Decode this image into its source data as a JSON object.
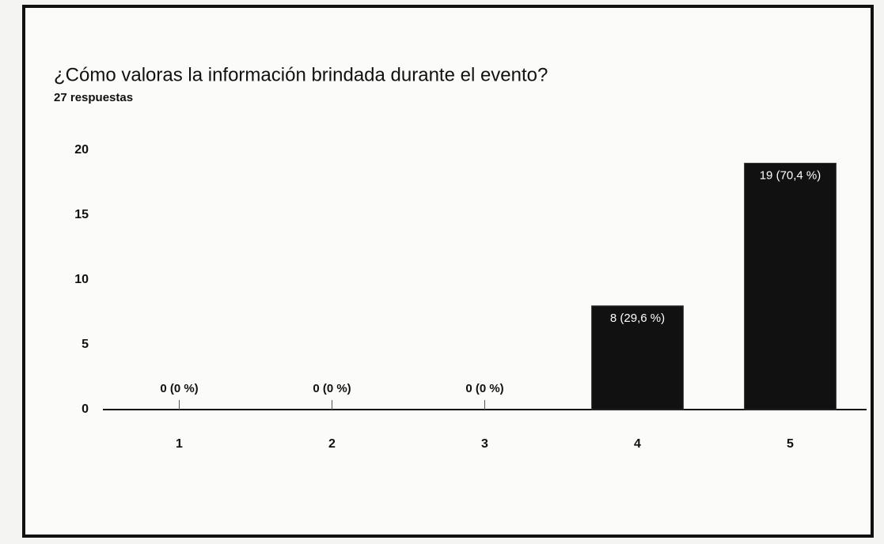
{
  "chart_data": {
    "type": "bar",
    "title": "¿Cómo valoras la información brindada durante el evento?",
    "subtitle": "27 respuestas",
    "categories": [
      "1",
      "2",
      "3",
      "4",
      "5"
    ],
    "values": [
      0,
      0,
      0,
      8,
      19
    ],
    "value_labels": [
      "0 (0 %)",
      "0 (0 %)",
      "0 (0 %)",
      "8 (29,6 %)",
      "19 (70,4 %)"
    ],
    "color": "#111111",
    "ylim": [
      0,
      20
    ],
    "yticks": [
      0,
      5,
      10,
      15,
      20
    ],
    "grid": false
  }
}
